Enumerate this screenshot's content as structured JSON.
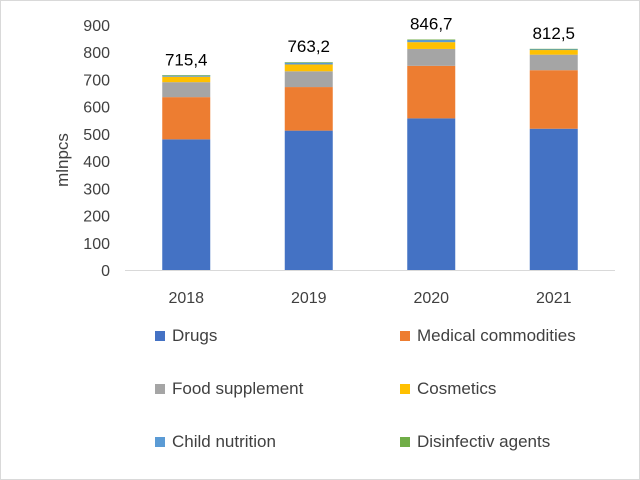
{
  "chart_data": {
    "type": "bar",
    "stacked": true,
    "categories": [
      "2018",
      "2019",
      "2020",
      "2021"
    ],
    "ylabel": "mlnpcs",
    "xlabel": "",
    "ylim": [
      0,
      900
    ],
    "yticks": [
      "0",
      "100",
      "200",
      "300",
      "400",
      "500",
      "600",
      "700",
      "800",
      "900"
    ],
    "totals": [
      "715,4",
      "763,2",
      "846,7",
      "812,5"
    ],
    "grid": false,
    "legend_position": "bottom",
    "series": [
      {
        "name": "Drugs",
        "color": "#4472C4",
        "values": [
          480,
          512,
          557,
          519
        ]
      },
      {
        "name": "Medical commodities",
        "color": "#ED7D31",
        "values": [
          155,
          160,
          193,
          215
        ]
      },
      {
        "name": "Food supplement",
        "color": "#A5A5A5",
        "values": [
          55,
          58,
          62,
          57
        ]
      },
      {
        "name": "Cosmetics",
        "color": "#FFC000",
        "values": [
          20,
          25,
          25,
          17
        ]
      },
      {
        "name": "Child nutrition",
        "color": "#5B9BD5",
        "values": [
          5,
          7,
          8,
          3
        ]
      },
      {
        "name": "Disinfectiv agents",
        "color": "#70AD47",
        "values": [
          0.4,
          1.2,
          1.7,
          1.5
        ]
      }
    ]
  }
}
